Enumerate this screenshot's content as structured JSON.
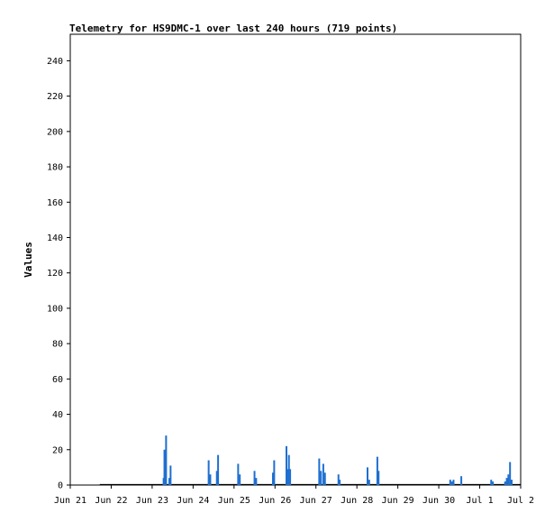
{
  "chart_data": {
    "type": "bar",
    "title": "Telemetry for HS9DMC-1 over last 240 hours (719 points)",
    "xlabel": "",
    "ylabel": "Values",
    "ylim": [
      0,
      255
    ],
    "xlim_days": [
      0,
      11
    ],
    "yticks": [
      0,
      20,
      40,
      60,
      80,
      100,
      120,
      140,
      160,
      180,
      200,
      220,
      240
    ],
    "xtick_labels": [
      "Jun 21",
      "Jun 22",
      "Jun 23",
      "Jun 24",
      "Jun 25",
      "Jun 26",
      "Jun 27",
      "Jun 28",
      "Jun 29",
      "Jun 30",
      "Jul 1",
      "Jul 2"
    ],
    "grid": false,
    "color": "#1f6fd0",
    "baseline_range_days": [
      0.72,
      11.0
    ],
    "series": [
      {
        "name": "",
        "points": [
          {
            "x": 2.28,
            "y": 4
          },
          {
            "x": 2.3,
            "y": 20
          },
          {
            "x": 2.32,
            "y": 14
          },
          {
            "x": 2.34,
            "y": 28
          },
          {
            "x": 2.42,
            "y": 4
          },
          {
            "x": 2.45,
            "y": 11
          },
          {
            "x": 3.38,
            "y": 14
          },
          {
            "x": 3.42,
            "y": 6
          },
          {
            "x": 3.58,
            "y": 8
          },
          {
            "x": 3.61,
            "y": 17
          },
          {
            "x": 4.1,
            "y": 12
          },
          {
            "x": 4.14,
            "y": 6
          },
          {
            "x": 4.5,
            "y": 8
          },
          {
            "x": 4.54,
            "y": 4
          },
          {
            "x": 4.95,
            "y": 7
          },
          {
            "x": 4.98,
            "y": 14
          },
          {
            "x": 5.28,
            "y": 22
          },
          {
            "x": 5.31,
            "y": 9
          },
          {
            "x": 5.34,
            "y": 17
          },
          {
            "x": 5.37,
            "y": 9
          },
          {
            "x": 6.08,
            "y": 15
          },
          {
            "x": 6.12,
            "y": 8
          },
          {
            "x": 6.18,
            "y": 12
          },
          {
            "x": 6.22,
            "y": 7
          },
          {
            "x": 6.55,
            "y": 6
          },
          {
            "x": 6.58,
            "y": 3
          },
          {
            "x": 7.26,
            "y": 10
          },
          {
            "x": 7.3,
            "y": 3
          },
          {
            "x": 7.5,
            "y": 16
          },
          {
            "x": 7.53,
            "y": 8
          },
          {
            "x": 9.28,
            "y": 3
          },
          {
            "x": 9.32,
            "y": 2
          },
          {
            "x": 9.36,
            "y": 3
          },
          {
            "x": 9.55,
            "y": 5
          },
          {
            "x": 10.28,
            "y": 3
          },
          {
            "x": 10.32,
            "y": 2
          },
          {
            "x": 10.62,
            "y": 2
          },
          {
            "x": 10.66,
            "y": 4
          },
          {
            "x": 10.7,
            "y": 6
          },
          {
            "x": 10.74,
            "y": 13
          },
          {
            "x": 10.78,
            "y": 3
          }
        ]
      }
    ]
  }
}
